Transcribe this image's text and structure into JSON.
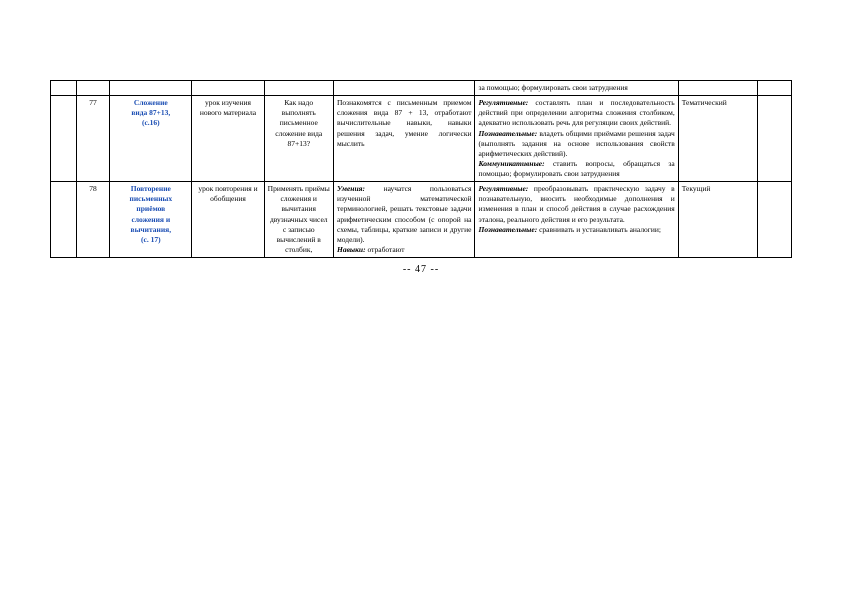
{
  "pageNumber": "-- 47 --",
  "table": {
    "columns": [
      {
        "class": "col-0"
      },
      {
        "class": "col-1"
      },
      {
        "class": "col-2"
      },
      {
        "class": "col-3"
      },
      {
        "class": "col-4"
      },
      {
        "class": "col-5"
      },
      {
        "class": "col-6"
      },
      {
        "class": "col-7"
      },
      {
        "class": "col-8"
      }
    ]
  },
  "row0": {
    "col6": "за помощью; формулировать свои затруднения"
  },
  "row1": {
    "num": "77",
    "topic_l1": "Сложение",
    "topic_l2": "вида 87+13,",
    "topic_l3": "(с.16)",
    "lessonType": "урок изучения нового материала",
    "question": "Как надо выполнять письменное сложение вида 87+13?",
    "skills": "Познакомятся с письменным приемом сложения вида 87 + 13, отработают вычислительные навыки, навыки решения задач, умение логически мыслить",
    "comp_reg_head": "Регулятивные:",
    "comp_reg_body": " составлять план и последовательность действий при определении алгоритма сложения столбиком, адекватно использовать речь для регуляции своих действий.",
    "comp_poz_head": "Познавательные:",
    "comp_poz_body": " владеть общими приёмами решения задач (выполнять задания на основе использования свойств арифметических действий).",
    "comp_kom_head": "Коммуникативные:",
    "comp_kom_body": " ставить вопросы, обращаться за помощью; формулировать свои затруднения",
    "control": "Тематический"
  },
  "row2": {
    "num": "78",
    "topic_l1": "Повторение",
    "topic_l2": "письменных",
    "topic_l3": "приёмов",
    "topic_l4": "сложения и",
    "topic_l5": "вычитания,",
    "topic_l6": "(с. 17)",
    "lessonType": "урок повторения и обобщения",
    "question": "Применять приёмы сложения и вычитания двузначных чисел с записью вычислений в столбик,",
    "skills_h1": "Умения:",
    "skills_b1": " научатся пользоваться изученной математической терминологией, решать текстовые задачи арифметическим способом (с опорой на схемы, таблицы, краткие записи и другие модели).",
    "skills_h2": "Навыки:",
    "skills_b2": " отработают",
    "comp_reg_head": "Регулятивные:",
    "comp_reg_body": " преобразовывать практическую задачу в познавательную, вносить необходимые дополнения и изменения в план и способ действия в случае расхождения эталона, реального действия и его результата.",
    "comp_poz_head": "Познавательные:",
    "comp_poz_body": " сравнивать и устанавливать аналогии;",
    "control": "Текущий"
  }
}
